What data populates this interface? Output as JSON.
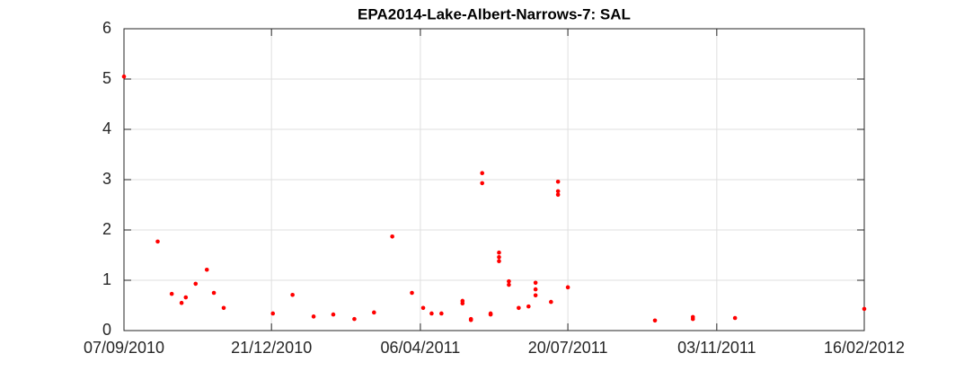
{
  "chart_data": {
    "type": "scatter",
    "title": "EPA2014-Lake-Albert-Narrows-7: SAL",
    "x": [
      "2010-09-07",
      "2010-10-01",
      "2010-10-11",
      "2010-10-18",
      "2010-10-21",
      "2010-10-28",
      "2010-11-05",
      "2010-11-10",
      "2010-11-17",
      "2010-12-22",
      "2011-01-05",
      "2011-01-20",
      "2011-02-03",
      "2011-02-18",
      "2011-03-04",
      "2011-03-17",
      "2011-03-31",
      "2011-04-08",
      "2011-04-14",
      "2011-04-21",
      "2011-05-06",
      "2011-05-06",
      "2011-05-12",
      "2011-05-12",
      "2011-05-20",
      "2011-05-20",
      "2011-05-26",
      "2011-05-26",
      "2011-06-01",
      "2011-06-01",
      "2011-06-01",
      "2011-06-08",
      "2011-06-08",
      "2011-06-15",
      "2011-06-22",
      "2011-06-27",
      "2011-06-27",
      "2011-06-27",
      "2011-07-08",
      "2011-07-13",
      "2011-07-13",
      "2011-07-13",
      "2011-07-20",
      "2011-09-20",
      "2011-10-17",
      "2011-10-17",
      "2011-11-16",
      "2012-02-16"
    ],
    "values": [
      5.05,
      1.77,
      0.73,
      0.55,
      0.66,
      0.93,
      1.21,
      0.75,
      0.45,
      0.34,
      0.71,
      0.28,
      0.32,
      0.23,
      0.36,
      1.87,
      0.75,
      0.45,
      0.34,
      0.34,
      0.59,
      0.54,
      0.23,
      0.21,
      3.13,
      2.93,
      0.34,
      0.32,
      1.55,
      1.46,
      1.38,
      0.98,
      0.91,
      0.45,
      0.48,
      0.95,
      0.82,
      0.7,
      0.57,
      2.96,
      2.77,
      2.7,
      0.86,
      0.2,
      0.27,
      0.23,
      0.25,
      0.43
    ],
    "color": "#ff0000",
    "xlim": [
      "2010-09-07",
      "2012-02-16"
    ],
    "xticks": [
      {
        "value": "2010-09-07",
        "label": "07/09/2010"
      },
      {
        "value": "2010-12-21",
        "label": "21/12/2010"
      },
      {
        "value": "2011-04-06",
        "label": "06/04/2011"
      },
      {
        "value": "2011-07-20",
        "label": "20/07/2011"
      },
      {
        "value": "2011-11-03",
        "label": "03/11/2011"
      },
      {
        "value": "2012-02-16",
        "label": "16/02/2012"
      }
    ],
    "ylim": [
      0,
      6
    ],
    "yticks": [
      0,
      1,
      2,
      3,
      4,
      5,
      6
    ],
    "grid": true
  }
}
